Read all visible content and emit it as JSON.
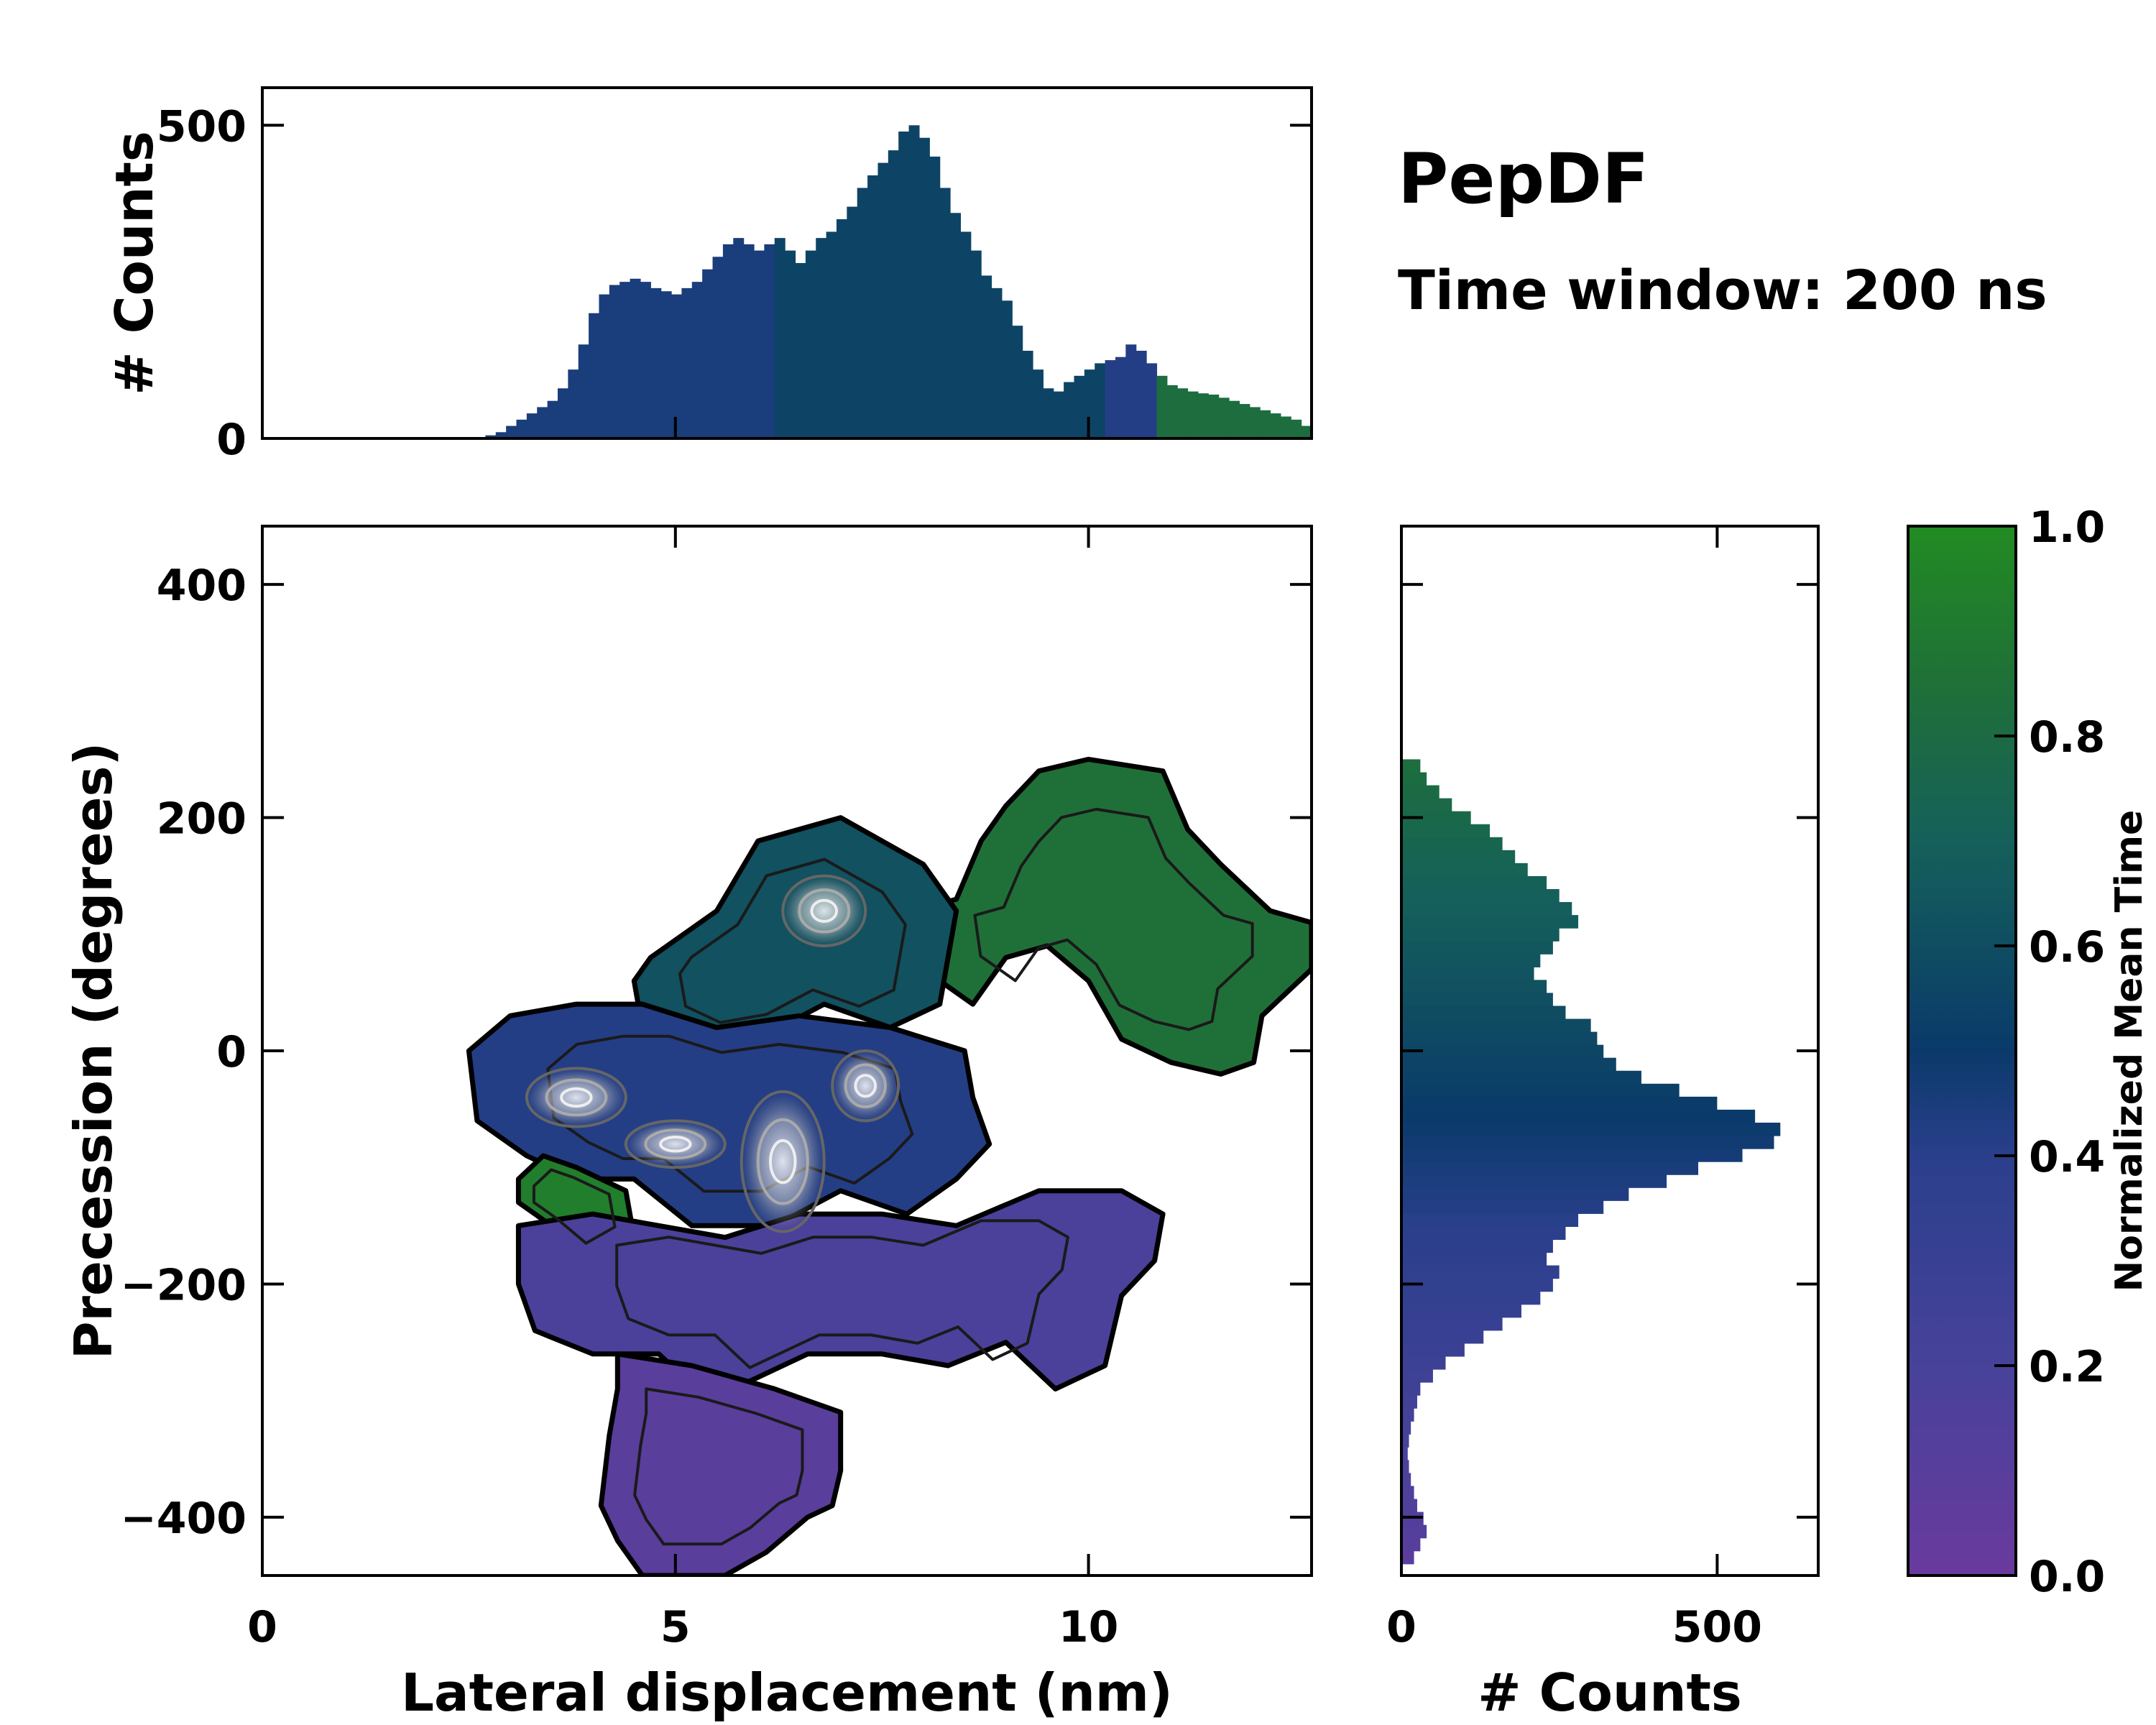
{
  "chart_data": {
    "type": "scatter",
    "title": "PepDF",
    "subtitle": "Time window: 200 ns",
    "main": {
      "xlabel": "Lateral displacement (nm)",
      "ylabel": "Precession (degrees)",
      "xlim": [
        0,
        12.7
      ],
      "ylim": [
        -450,
        450
      ],
      "xticks": [
        0,
        5,
        10
      ],
      "yticks": [
        -400,
        -200,
        0,
        200,
        400
      ],
      "xtick_labels": [
        "0",
        "5",
        "10"
      ],
      "ytick_labels": [
        "−400",
        "−200",
        "0",
        "200",
        "400"
      ],
      "regions": [
        {
          "name": "green-region",
          "time": 0.85,
          "points": [
            [
              8.4,
              130
            ],
            [
              8.7,
              180
            ],
            [
              9.0,
              210
            ],
            [
              9.4,
              240
            ],
            [
              10.0,
              250
            ],
            [
              10.9,
              240
            ],
            [
              11.2,
              190
            ],
            [
              11.6,
              160
            ],
            [
              12.2,
              120
            ],
            [
              12.7,
              110
            ],
            [
              12.7,
              70
            ],
            [
              12.1,
              30
            ],
            [
              12.0,
              -10
            ],
            [
              11.6,
              -20
            ],
            [
              11.0,
              -10
            ],
            [
              10.4,
              10
            ],
            [
              10.0,
              60
            ],
            [
              9.5,
              90
            ],
            [
              9.0,
              80
            ],
            [
              8.6,
              40
            ],
            [
              8.0,
              70
            ],
            [
              7.9,
              120
            ]
          ]
        },
        {
          "name": "teal-region",
          "time": 0.62,
          "points": [
            [
              4.7,
              80
            ],
            [
              5.5,
              120
            ],
            [
              6.0,
              180
            ],
            [
              7.0,
              200
            ],
            [
              8.0,
              160
            ],
            [
              8.4,
              120
            ],
            [
              8.2,
              40
            ],
            [
              7.6,
              20
            ],
            [
              6.8,
              40
            ],
            [
              6.0,
              10
            ],
            [
              5.2,
              0
            ],
            [
              4.6,
              20
            ],
            [
              4.5,
              60
            ]
          ]
        },
        {
          "name": "blue-region",
          "time": 0.42,
          "points": [
            [
              2.5,
              0
            ],
            [
              3.0,
              30
            ],
            [
              3.8,
              40
            ],
            [
              4.6,
              40
            ],
            [
              5.5,
              20
            ],
            [
              6.5,
              30
            ],
            [
              7.6,
              20
            ],
            [
              8.5,
              0
            ],
            [
              8.6,
              -40
            ],
            [
              8.8,
              -80
            ],
            [
              8.4,
              -110
            ],
            [
              7.8,
              -140
            ],
            [
              7.0,
              -120
            ],
            [
              6.2,
              -150
            ],
            [
              5.2,
              -150
            ],
            [
              4.5,
              -110
            ],
            [
              3.8,
              -110
            ],
            [
              3.2,
              -90
            ],
            [
              2.6,
              -60
            ]
          ]
        },
        {
          "name": "green-patch",
          "time": 0.93,
          "points": [
            [
              3.1,
              -110
            ],
            [
              3.4,
              -90
            ],
            [
              3.8,
              -100
            ],
            [
              4.4,
              -120
            ],
            [
              4.5,
              -160
            ],
            [
              4.0,
              -180
            ],
            [
              3.5,
              -150
            ],
            [
              3.1,
              -130
            ]
          ]
        },
        {
          "name": "violet-region",
          "time": 0.18,
          "points": [
            [
              3.1,
              -150
            ],
            [
              4.0,
              -140
            ],
            [
              4.8,
              -150
            ],
            [
              5.6,
              -160
            ],
            [
              6.5,
              -140
            ],
            [
              7.5,
              -140
            ],
            [
              8.4,
              -150
            ],
            [
              9.4,
              -120
            ],
            [
              10.4,
              -120
            ],
            [
              10.9,
              -140
            ],
            [
              10.8,
              -180
            ],
            [
              10.4,
              -210
            ],
            [
              10.2,
              -270
            ],
            [
              9.6,
              -290
            ],
            [
              9.0,
              -250
            ],
            [
              8.3,
              -270
            ],
            [
              7.5,
              -260
            ],
            [
              6.6,
              -260
            ],
            [
              6.0,
              -280
            ],
            [
              5.4,
              -300
            ],
            [
              4.8,
              -260
            ],
            [
              4.0,
              -260
            ],
            [
              3.3,
              -240
            ],
            [
              3.1,
              -200
            ]
          ]
        },
        {
          "name": "lower-violet-region",
          "time": 0.1,
          "points": [
            [
              4.3,
              -260
            ],
            [
              5.2,
              -270
            ],
            [
              6.2,
              -290
            ],
            [
              7.0,
              -310
            ],
            [
              7.0,
              -360
            ],
            [
              6.9,
              -390
            ],
            [
              6.6,
              -400
            ],
            [
              6.1,
              -430
            ],
            [
              5.6,
              -450
            ],
            [
              4.6,
              -450
            ],
            [
              4.3,
              -420
            ],
            [
              4.1,
              -390
            ],
            [
              4.2,
              -330
            ],
            [
              4.3,
              -290
            ]
          ]
        }
      ],
      "density_peaks": [
        {
          "x": 3.8,
          "y": -40,
          "rx": 0.6,
          "ry": 25
        },
        {
          "x": 5.0,
          "y": -80,
          "rx": 0.6,
          "ry": 20
        },
        {
          "x": 6.3,
          "y": -95,
          "rx": 0.5,
          "ry": 60
        },
        {
          "x": 6.8,
          "y": 120,
          "rx": 0.5,
          "ry": 30
        },
        {
          "x": 7.3,
          "y": -30,
          "rx": 0.4,
          "ry": 30
        }
      ]
    },
    "top_hist": {
      "ylabel": "# Counts",
      "ylim": [
        0,
        560
      ],
      "yticks": [
        0,
        500
      ],
      "ytick_labels": [
        "0",
        "500"
      ],
      "x_start": 2.7,
      "x_end": 12.7,
      "counts": [
        5,
        10,
        20,
        30,
        40,
        50,
        60,
        80,
        110,
        150,
        200,
        230,
        245,
        250,
        255,
        250,
        240,
        235,
        230,
        240,
        250,
        270,
        290,
        310,
        320,
        310,
        300,
        310,
        320,
        300,
        280,
        300,
        320,
        330,
        350,
        370,
        400,
        420,
        440,
        460,
        490,
        500,
        480,
        450,
        400,
        360,
        330,
        300,
        260,
        240,
        220,
        180,
        140,
        110,
        80,
        75,
        90,
        100,
        110,
        120,
        125,
        130,
        150,
        140,
        120,
        100,
        85,
        80,
        75,
        72,
        70,
        65,
        60,
        55,
        50,
        45,
        40,
        35,
        30,
        20
      ]
    },
    "right_hist": {
      "xlabel": "# Counts",
      "xlim": [
        0,
        660
      ],
      "xticks": [
        0,
        500
      ],
      "xtick_labels": [
        "0",
        "500"
      ],
      "y_start": -440,
      "y_end": 250,
      "counts": [
        20,
        30,
        40,
        35,
        25,
        20,
        15,
        12,
        10,
        12,
        15,
        20,
        25,
        30,
        50,
        70,
        100,
        130,
        160,
        190,
        220,
        240,
        250,
        230,
        240,
        260,
        280,
        320,
        360,
        420,
        470,
        540,
        590,
        600,
        560,
        500,
        440,
        380,
        340,
        320,
        310,
        300,
        260,
        240,
        230,
        210,
        220,
        240,
        250,
        280,
        270,
        250,
        230,
        200,
        180,
        160,
        140,
        110,
        80,
        60,
        40,
        30
      ]
    },
    "colorbar": {
      "label": "Normalized Mean Time",
      "ticks": [
        0.0,
        0.2,
        0.4,
        0.6,
        0.8,
        1.0
      ],
      "tick_labels": [
        "0.0",
        "0.2",
        "0.4",
        "0.6",
        "0.8",
        "1.0"
      ],
      "stops": [
        {
          "t": 0.0,
          "color": "#6a3a9e"
        },
        {
          "t": 0.2,
          "color": "#47429a"
        },
        {
          "t": 0.4,
          "color": "#2a3f8c"
        },
        {
          "t": 0.5,
          "color": "#0a3a6a"
        },
        {
          "t": 0.7,
          "color": "#15605a"
        },
        {
          "t": 0.85,
          "color": "#1f7038"
        },
        {
          "t": 1.0,
          "color": "#228b22"
        }
      ]
    }
  }
}
